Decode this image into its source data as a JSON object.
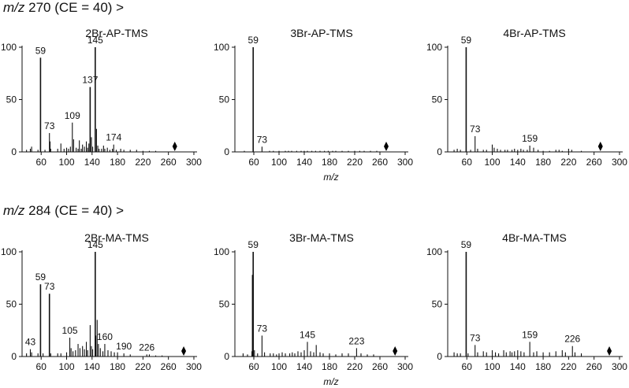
{
  "sections": [
    {
      "mz_label": "m/z",
      "rest_label": "270 (CE = 40) >"
    },
    {
      "mz_label": "m/z",
      "rest_label": "284 (CE = 40) >"
    }
  ],
  "colors": {
    "peak": "#111111",
    "axis": "#111111",
    "marker": "#000000"
  },
  "chart_data": [
    {
      "type": "bar",
      "title": "2Br-AP-TMS",
      "xlabel": "",
      "ylabel": "",
      "xlim": [
        30,
        305
      ],
      "ylim": [
        0,
        100
      ],
      "xticks": [
        60,
        100,
        140,
        180,
        220,
        260,
        300
      ],
      "yticks": [
        0,
        50,
        100
      ],
      "precursor": 270,
      "peaks": [
        [
          37,
          2
        ],
        [
          43,
          3
        ],
        [
          45,
          5
        ],
        [
          55,
          2
        ],
        [
          59,
          90
        ],
        [
          66,
          2
        ],
        [
          73,
          18
        ],
        [
          74,
          10
        ],
        [
          75,
          3
        ],
        [
          86,
          3
        ],
        [
          91,
          8
        ],
        [
          96,
          3
        ],
        [
          100,
          4
        ],
        [
          103,
          3
        ],
        [
          106,
          5
        ],
        [
          109,
          28
        ],
        [
          111,
          12
        ],
        [
          115,
          4
        ],
        [
          118,
          3
        ],
        [
          120,
          11
        ],
        [
          123,
          3
        ],
        [
          125,
          7
        ],
        [
          128,
          5
        ],
        [
          131,
          10
        ],
        [
          133,
          4
        ],
        [
          135,
          8
        ],
        [
          137,
          62
        ],
        [
          139,
          14
        ],
        [
          141,
          5
        ],
        [
          145,
          100
        ],
        [
          147,
          22
        ],
        [
          149,
          6
        ],
        [
          151,
          3
        ],
        [
          155,
          3
        ],
        [
          158,
          6
        ],
        [
          160,
          3
        ],
        [
          164,
          4
        ],
        [
          168,
          2
        ],
        [
          172,
          3
        ],
        [
          174,
          7
        ],
        [
          178,
          2
        ],
        [
          185,
          3
        ],
        [
          190,
          2
        ],
        [
          200,
          2
        ],
        [
          210,
          2
        ],
        [
          220,
          1
        ],
        [
          230,
          1
        ],
        [
          240,
          1
        ]
      ],
      "annotations": [
        {
          "x": 59,
          "label": "59"
        },
        {
          "x": 73,
          "label": "73"
        },
        {
          "x": 109,
          "label": "109"
        },
        {
          "x": 137,
          "label": "137"
        },
        {
          "x": 145,
          "label": "145"
        },
        {
          "x": 174,
          "label": "174"
        }
      ]
    },
    {
      "type": "bar",
      "title": "3Br-AP-TMS",
      "xlabel": "m/z",
      "ylabel": "",
      "xlim": [
        30,
        305
      ],
      "ylim": [
        0,
        100
      ],
      "xticks": [
        60,
        100,
        140,
        180,
        220,
        260,
        300
      ],
      "yticks": [
        0,
        50,
        100
      ],
      "precursor": 270,
      "peaks": [
        [
          45,
          1
        ],
        [
          59,
          100
        ],
        [
          73,
          5
        ],
        [
          85,
          1
        ],
        [
          91,
          1
        ],
        [
          100,
          1
        ],
        [
          110,
          1
        ],
        [
          115,
          1
        ],
        [
          120,
          1
        ],
        [
          128,
          1
        ],
        [
          135,
          1
        ],
        [
          140,
          1
        ],
        [
          145,
          1
        ],
        [
          152,
          1
        ],
        [
          158,
          1
        ],
        [
          165,
          1
        ],
        [
          172,
          1
        ],
        [
          178,
          1
        ],
        [
          185,
          1
        ],
        [
          190,
          1
        ],
        [
          200,
          1
        ],
        [
          210,
          1
        ],
        [
          220,
          1
        ],
        [
          228,
          1
        ],
        [
          235,
          1
        ],
        [
          245,
          1
        ],
        [
          255,
          1
        ]
      ],
      "annotations": [
        {
          "x": 59,
          "label": "59"
        },
        {
          "x": 73,
          "label": "73"
        }
      ]
    },
    {
      "type": "bar",
      "title": "4Br-AP-TMS",
      "xlabel": "",
      "ylabel": "",
      "xlim": [
        30,
        305
      ],
      "ylim": [
        0,
        100
      ],
      "xticks": [
        60,
        100,
        140,
        180,
        220,
        260,
        300
      ],
      "yticks": [
        0,
        50,
        100
      ],
      "precursor": 270,
      "peaks": [
        [
          40,
          2
        ],
        [
          45,
          3
        ],
        [
          50,
          2
        ],
        [
          59,
          100
        ],
        [
          66,
          2
        ],
        [
          73,
          15
        ],
        [
          77,
          3
        ],
        [
          86,
          2
        ],
        [
          91,
          2
        ],
        [
          100,
          7
        ],
        [
          103,
          4
        ],
        [
          108,
          3
        ],
        [
          113,
          2
        ],
        [
          120,
          2
        ],
        [
          124,
          2
        ],
        [
          131,
          2
        ],
        [
          135,
          3
        ],
        [
          140,
          2
        ],
        [
          145,
          3
        ],
        [
          149,
          2
        ],
        [
          155,
          2
        ],
        [
          159,
          6
        ],
        [
          165,
          4
        ],
        [
          172,
          2
        ],
        [
          180,
          1
        ],
        [
          190,
          1
        ],
        [
          200,
          2
        ],
        [
          205,
          2
        ],
        [
          210,
          1
        ],
        [
          220,
          3
        ],
        [
          225,
          2
        ],
        [
          240,
          1
        ]
      ],
      "annotations": [
        {
          "x": 59,
          "label": "59"
        },
        {
          "x": 73,
          "label": "73"
        },
        {
          "x": 159,
          "label": "159"
        }
      ]
    },
    {
      "type": "bar",
      "title": "2Br-MA-TMS",
      "xlabel": "",
      "ylabel": "",
      "xlim": [
        30,
        305
      ],
      "ylim": [
        0,
        100
      ],
      "xticks": [
        60,
        100,
        140,
        180,
        220,
        260,
        300
      ],
      "yticks": [
        0,
        50,
        100
      ],
      "precursor": 284,
      "peaks": [
        [
          37,
          3
        ],
        [
          43,
          7
        ],
        [
          45,
          4
        ],
        [
          55,
          3
        ],
        [
          59,
          69
        ],
        [
          63,
          3
        ],
        [
          73,
          60
        ],
        [
          75,
          3
        ],
        [
          86,
          3
        ],
        [
          91,
          3
        ],
        [
          100,
          4
        ],
        [
          105,
          18
        ],
        [
          107,
          8
        ],
        [
          110,
          5
        ],
        [
          114,
          6
        ],
        [
          118,
          12
        ],
        [
          121,
          8
        ],
        [
          125,
          10
        ],
        [
          128,
          7
        ],
        [
          131,
          14
        ],
        [
          133,
          6
        ],
        [
          137,
          30
        ],
        [
          139,
          10
        ],
        [
          141,
          7
        ],
        [
          145,
          100
        ],
        [
          146,
          20
        ],
        [
          148,
          35
        ],
        [
          150,
          12
        ],
        [
          153,
          8
        ],
        [
          157,
          5
        ],
        [
          160,
          12
        ],
        [
          165,
          6
        ],
        [
          170,
          5
        ],
        [
          175,
          4
        ],
        [
          180,
          4
        ],
        [
          190,
          3
        ],
        [
          200,
          2
        ],
        [
          226,
          2
        ],
        [
          230,
          2
        ],
        [
          240,
          1
        ],
        [
          250,
          1
        ]
      ],
      "annotations": [
        {
          "x": 43,
          "label": "43"
        },
        {
          "x": 59,
          "label": "59"
        },
        {
          "x": 73,
          "label": "73"
        },
        {
          "x": 105,
          "label": "105"
        },
        {
          "x": 145,
          "label": "145"
        },
        {
          "x": 160,
          "label": "160"
        },
        {
          "x": 190,
          "label": "190"
        },
        {
          "x": 226,
          "label": "226"
        }
      ]
    },
    {
      "type": "bar",
      "title": "3Br-MA-TMS",
      "xlabel": "m/z",
      "ylabel": "",
      "xlim": [
        30,
        305
      ],
      "ylim": [
        0,
        100
      ],
      "xticks": [
        60,
        100,
        140,
        180,
        220,
        260,
        300
      ],
      "yticks": [
        0,
        50,
        100
      ],
      "precursor": 284,
      "peaks": [
        [
          43,
          3
        ],
        [
          50,
          2
        ],
        [
          57,
          5
        ],
        [
          58,
          78
        ],
        [
          59,
          100
        ],
        [
          61,
          6
        ],
        [
          66,
          3
        ],
        [
          73,
          20
        ],
        [
          77,
          4
        ],
        [
          86,
          3
        ],
        [
          91,
          3
        ],
        [
          96,
          2
        ],
        [
          100,
          3
        ],
        [
          105,
          4
        ],
        [
          110,
          3
        ],
        [
          117,
          3
        ],
        [
          121,
          4
        ],
        [
          125,
          3
        ],
        [
          130,
          5
        ],
        [
          135,
          4
        ],
        [
          140,
          6
        ],
        [
          145,
          14
        ],
        [
          150,
          5
        ],
        [
          155,
          4
        ],
        [
          159,
          11
        ],
        [
          165,
          4
        ],
        [
          170,
          3
        ],
        [
          180,
          3
        ],
        [
          190,
          2
        ],
        [
          200,
          3
        ],
        [
          210,
          3
        ],
        [
          223,
          8
        ],
        [
          230,
          3
        ],
        [
          240,
          2
        ],
        [
          250,
          2
        ]
      ],
      "annotations": [
        {
          "x": 59,
          "label": "59"
        },
        {
          "x": 73,
          "label": "73"
        },
        {
          "x": 145,
          "label": "145"
        },
        {
          "x": 223,
          "label": "223"
        }
      ]
    },
    {
      "type": "bar",
      "title": "4Br-MA-TMS",
      "xlabel": "",
      "ylabel": "",
      "xlim": [
        30,
        305
      ],
      "ylim": [
        0,
        100
      ],
      "xticks": [
        60,
        100,
        140,
        180,
        220,
        260,
        300
      ],
      "yticks": [
        0,
        50,
        100
      ],
      "precursor": 284,
      "peaks": [
        [
          40,
          4
        ],
        [
          45,
          3
        ],
        [
          50,
          3
        ],
        [
          59,
          100
        ],
        [
          62,
          3
        ],
        [
          73,
          11
        ],
        [
          77,
          4
        ],
        [
          86,
          5
        ],
        [
          91,
          4
        ],
        [
          100,
          6
        ],
        [
          105,
          4
        ],
        [
          110,
          3
        ],
        [
          118,
          6
        ],
        [
          122,
          4
        ],
        [
          128,
          5
        ],
        [
          131,
          4
        ],
        [
          135,
          5
        ],
        [
          140,
          6
        ],
        [
          145,
          5
        ],
        [
          150,
          4
        ],
        [
          159,
          14
        ],
        [
          165,
          4
        ],
        [
          170,
          5
        ],
        [
          180,
          4
        ],
        [
          190,
          4
        ],
        [
          200,
          5
        ],
        [
          210,
          6
        ],
        [
          215,
          4
        ],
        [
          226,
          10
        ],
        [
          230,
          4
        ],
        [
          240,
          3
        ]
      ],
      "annotations": [
        {
          "x": 59,
          "label": "59"
        },
        {
          "x": 73,
          "label": "73"
        },
        {
          "x": 159,
          "label": "159"
        },
        {
          "x": 226,
          "label": "226"
        }
      ]
    }
  ]
}
